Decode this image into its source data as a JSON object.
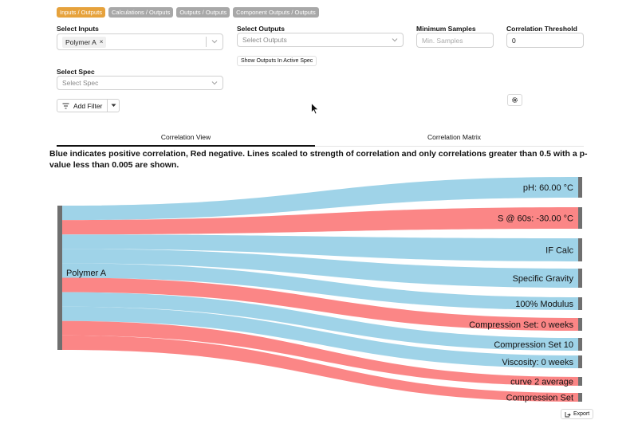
{
  "top_tabs": [
    {
      "label": "Inputs / Outputs",
      "active": true
    },
    {
      "label": "Calculations / Outputs",
      "active": false
    },
    {
      "label": "Outputs / Outputs",
      "active": false
    },
    {
      "label": "Component Outputs / Outputs",
      "active": false
    }
  ],
  "inputs": {
    "label": "Select Inputs",
    "selected": "Polymer A",
    "remove": "×"
  },
  "outputs": {
    "label": "Select Outputs",
    "placeholder": "Select Outputs"
  },
  "min_samples": {
    "label": "Minimum Samples",
    "placeholder": "Min. Samples"
  },
  "threshold": {
    "label": "Correlation Threshold",
    "value": "0"
  },
  "show_outputs_btn": "Show Outputs In Active Spec",
  "spec": {
    "label": "Select Spec",
    "placeholder": "Select Spec"
  },
  "filter_btn": "Add Filter",
  "view_tabs": {
    "correlation_view": "Correlation View",
    "correlation_matrix": "Correlation Matrix"
  },
  "description": "Blue indicates positive correlation, Red negative. Lines scaled to strength of correlation and only correlations greater than 0.5 with a p-value less than 0.005 are shown.",
  "colors": {
    "positive": "#9fd3e8",
    "negative": "#fb8686",
    "node": "#6f6f6f",
    "accent": "#e6a23c"
  },
  "chart_data": {
    "type": "sankey",
    "source": "Polymer A",
    "links": [
      {
        "target": "pH: 60.00 °C",
        "sign": "positive"
      },
      {
        "target": "S @ 60s: -30.00 °C",
        "sign": "negative"
      },
      {
        "target": "IF Calc",
        "sign": "positive"
      },
      {
        "target": "Specific Gravity",
        "sign": "positive"
      },
      {
        "target": "100% Modulus",
        "sign": "positive"
      },
      {
        "target": "Compression Set: 0 weeks",
        "sign": "negative"
      },
      {
        "target": "Compression Set 10",
        "sign": "positive"
      },
      {
        "target": "Viscosity: 0 weeks",
        "sign": "positive"
      },
      {
        "target": "curve 2 average",
        "sign": "negative"
      },
      {
        "target": "Compression Set",
        "sign": "negative"
      }
    ]
  },
  "export_btn": "Export"
}
